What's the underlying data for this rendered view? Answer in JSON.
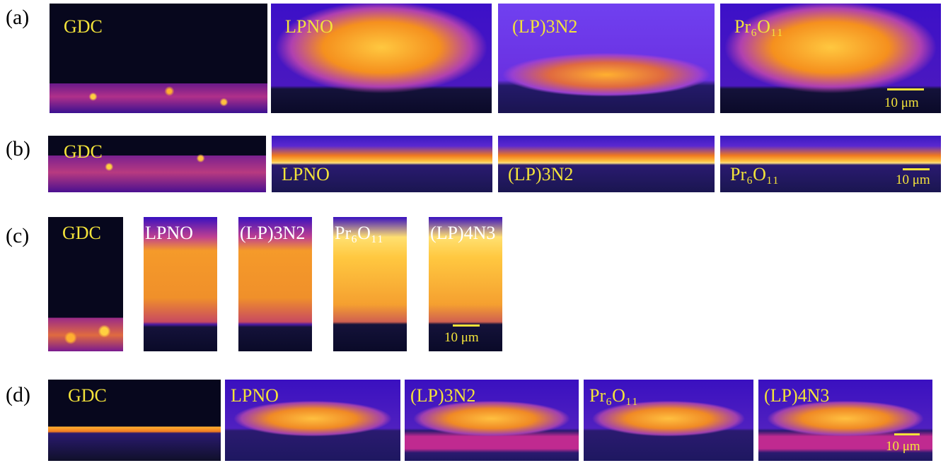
{
  "rows": [
    {
      "label": "(a)",
      "panels": [
        "GDC",
        "LPNO",
        "(LP)3N2",
        "Pr₆O₁₁"
      ],
      "scale_bar": "10 μm"
    },
    {
      "label": "(b)",
      "panels": [
        "GDC",
        "LPNO",
        "(LP)3N2",
        "Pr₆O₁₁"
      ],
      "scale_bar": "10 μm"
    },
    {
      "label": "(c)",
      "panels": [
        "GDC",
        "LPNO",
        "(LP)3N2",
        "Pr₆O₁₁",
        "(LP)4N3"
      ],
      "scale_bar": "10 μm"
    },
    {
      "label": "(d)",
      "panels": [
        "GDC",
        "LPNO",
        "(LP)3N2",
        "Pr₆O₁₁",
        "(LP)4N3"
      ],
      "scale_bar": "10 μm"
    }
  ]
}
